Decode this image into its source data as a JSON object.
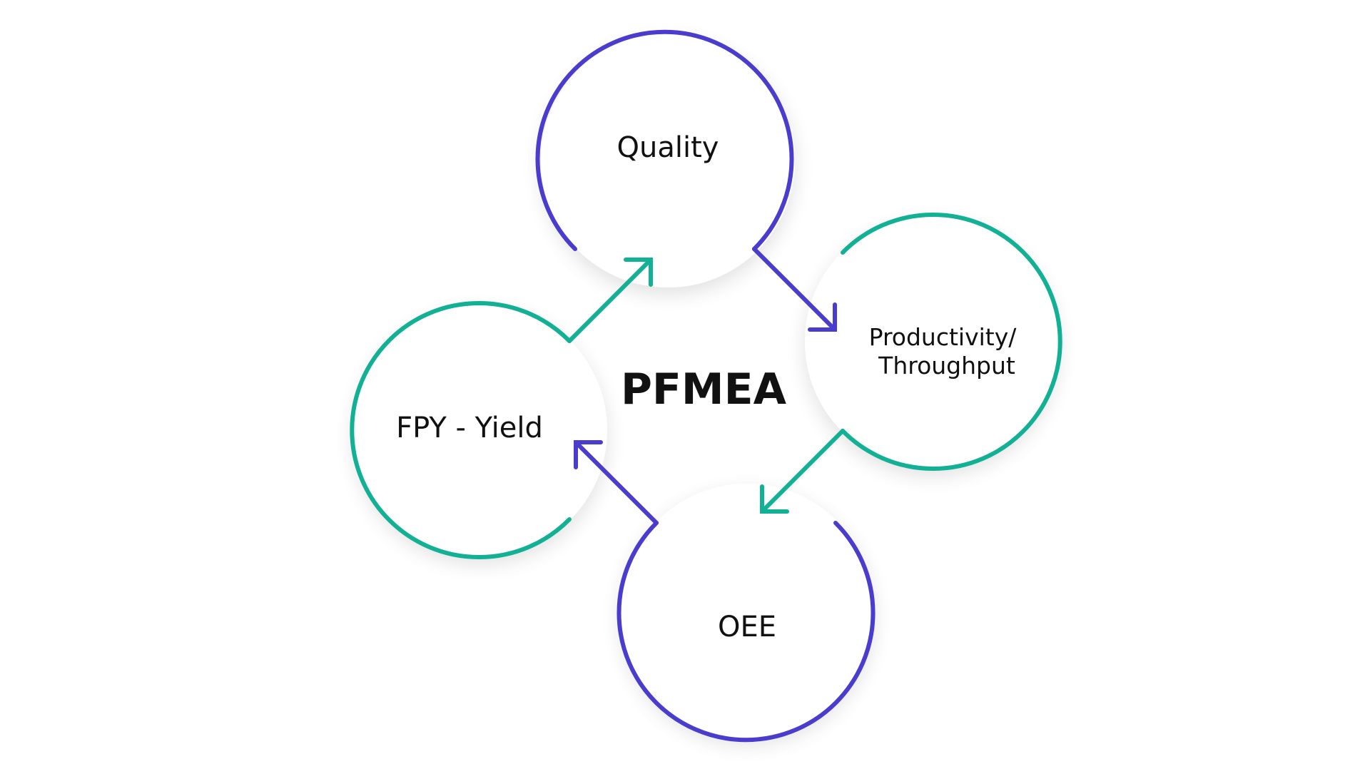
{
  "diagram": {
    "title": "PFMEA",
    "nodes": [
      {
        "id": "quality",
        "label_lines": [
          "Quality"
        ],
        "ring_color": "#4a3ccc"
      },
      {
        "id": "productivity",
        "label_lines": [
          "Productivity/",
          "Throughput"
        ],
        "ring_color": "#12b094"
      },
      {
        "id": "oee",
        "label_lines": [
          "OEE"
        ],
        "ring_color": "#4a3ccc"
      },
      {
        "id": "fpy",
        "label_lines": [
          "FPY - Yield"
        ],
        "ring_color": "#12b094"
      }
    ],
    "connections": [
      {
        "from": "quality",
        "to": "productivity",
        "color": "#4a3ccc"
      },
      {
        "from": "productivity",
        "to": "oee",
        "color": "#12b094"
      },
      {
        "from": "oee",
        "to": "fpy",
        "color": "#4a3ccc"
      },
      {
        "from": "fpy",
        "to": "quality",
        "color": "#12b094"
      }
    ],
    "colors": {
      "purple": "#4a3ccc",
      "teal": "#12b094",
      "text": "#111111"
    }
  }
}
